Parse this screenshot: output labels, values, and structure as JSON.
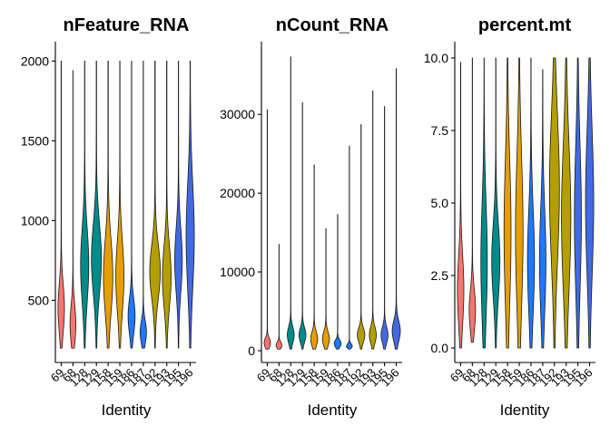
{
  "chart_data": [
    {
      "type": "violin",
      "title": "nFeature_RNA",
      "xlabel": "Identity",
      "ylabel": "",
      "categories": [
        "69",
        "68",
        "128",
        "129",
        "158",
        "159",
        "186",
        "187",
        "192",
        "193",
        "195",
        "196"
      ],
      "colors": [
        "#F8766D",
        "#F8766D",
        "#008B8B",
        "#008B8B",
        "#E69F00",
        "#E69F00",
        "#1F78FF",
        "#1F78FF",
        "#B59F00",
        "#B59F00",
        "#4169E1",
        "#4169E1"
      ],
      "ylim": [
        110,
        2110
      ],
      "yticks": [
        500,
        1000,
        1500,
        2000
      ],
      "series": [
        {
          "category": "69",
          "min": 200,
          "max": 2000,
          "mode": 450,
          "spread": 150,
          "width": 0.55
        },
        {
          "category": "68",
          "min": 200,
          "max": 1940,
          "mode": 350,
          "spread": 120,
          "width": 0.5
        },
        {
          "category": "128",
          "min": 200,
          "max": 2000,
          "mode": 720,
          "spread": 230,
          "width": 0.7
        },
        {
          "category": "129",
          "min": 200,
          "max": 2000,
          "mode": 760,
          "spread": 220,
          "width": 0.85
        },
        {
          "category": "158",
          "min": 200,
          "max": 2000,
          "mode": 650,
          "spread": 230,
          "width": 0.8
        },
        {
          "category": "159",
          "min": 200,
          "max": 2000,
          "mode": 650,
          "spread": 220,
          "width": 0.7
        },
        {
          "category": "186",
          "min": 200,
          "max": 2000,
          "mode": 400,
          "spread": 110,
          "width": 0.6
        },
        {
          "category": "187",
          "min": 200,
          "max": 2000,
          "mode": 300,
          "spread": 70,
          "width": 0.55
        },
        {
          "category": "192",
          "min": 200,
          "max": 2000,
          "mode": 680,
          "spread": 170,
          "width": 0.9
        },
        {
          "category": "193",
          "min": 200,
          "max": 2000,
          "mode": 650,
          "spread": 190,
          "width": 0.75
        },
        {
          "category": "195",
          "min": 200,
          "max": 2000,
          "mode": 750,
          "spread": 200,
          "width": 0.65
        },
        {
          "category": "196",
          "min": 200,
          "max": 2000,
          "mode": 900,
          "spread": 330,
          "width": 0.7
        }
      ]
    },
    {
      "type": "violin",
      "title": "nCount_RNA",
      "xlabel": "Identity",
      "ylabel": "",
      "categories": [
        "69",
        "68",
        "128",
        "129",
        "158",
        "159",
        "186",
        "187",
        "192",
        "193",
        "195",
        "196"
      ],
      "colors": [
        "#F8766D",
        "#F8766D",
        "#008B8B",
        "#008B8B",
        "#E69F00",
        "#E69F00",
        "#1F78FF",
        "#1F78FF",
        "#B59F00",
        "#B59F00",
        "#4169E1",
        "#4169E1"
      ],
      "ylim": [
        -1500,
        39000
      ],
      "yticks": [
        0,
        10000,
        20000,
        30000
      ],
      "series": [
        {
          "category": "69",
          "min": 200,
          "max": 30600,
          "mode": 1000,
          "spread": 600,
          "width": 0.55
        },
        {
          "category": "68",
          "min": 200,
          "max": 13500,
          "mode": 700,
          "spread": 400,
          "width": 0.5
        },
        {
          "category": "128",
          "min": 200,
          "max": 37300,
          "mode": 2000,
          "spread": 1000,
          "width": 0.6
        },
        {
          "category": "129",
          "min": 200,
          "max": 31500,
          "mode": 2000,
          "spread": 900,
          "width": 0.6
        },
        {
          "category": "158",
          "min": 200,
          "max": 23600,
          "mode": 1500,
          "spread": 900,
          "width": 0.6
        },
        {
          "category": "159",
          "min": 200,
          "max": 15500,
          "mode": 1500,
          "spread": 900,
          "width": 0.6
        },
        {
          "category": "186",
          "min": 200,
          "max": 17300,
          "mode": 900,
          "spread": 450,
          "width": 0.6
        },
        {
          "category": "187",
          "min": 200,
          "max": 26000,
          "mode": 600,
          "spread": 250,
          "width": 0.55
        },
        {
          "category": "192",
          "min": 200,
          "max": 28700,
          "mode": 2000,
          "spread": 900,
          "width": 0.65
        },
        {
          "category": "193",
          "min": 200,
          "max": 33000,
          "mode": 2000,
          "spread": 1000,
          "width": 0.6
        },
        {
          "category": "195",
          "min": 200,
          "max": 31000,
          "mode": 2000,
          "spread": 1000,
          "width": 0.6
        },
        {
          "category": "196",
          "min": 200,
          "max": 35800,
          "mode": 2500,
          "spread": 1300,
          "width": 0.7
        }
      ]
    },
    {
      "type": "violin",
      "title": "percent.mt",
      "xlabel": "Identity",
      "ylabel": "",
      "categories": [
        "69",
        "68",
        "128",
        "129",
        "158",
        "159",
        "186",
        "187",
        "192",
        "193",
        "195",
        "196"
      ],
      "colors": [
        "#F8766D",
        "#F8766D",
        "#008B8B",
        "#008B8B",
        "#E69F00",
        "#E69F00",
        "#1F78FF",
        "#1F78FF",
        "#B59F00",
        "#B59F00",
        "#4169E1",
        "#4169E1"
      ],
      "ylim": [
        -0.5,
        10.5
      ],
      "yticks": [
        "0.0",
        "2.5",
        "5.0",
        "7.5",
        "10.0"
      ],
      "series": [
        {
          "category": "69",
          "min": 0.0,
          "max": 9.85,
          "mode": 2.0,
          "spread": 1.2,
          "width": 0.55
        },
        {
          "category": "68",
          "min": 0.2,
          "max": 10.0,
          "mode": 1.3,
          "spread": 0.7,
          "width": 0.55
        },
        {
          "category": "128",
          "min": 0.0,
          "max": 10.0,
          "mode": 3.0,
          "spread": 2.0,
          "width": 0.55
        },
        {
          "category": "129",
          "min": 0.0,
          "max": 10.0,
          "mode": 3.0,
          "spread": 1.3,
          "width": 0.7
        },
        {
          "category": "158",
          "min": 0.0,
          "max": 10.0,
          "mode": 4.0,
          "spread": 2.5,
          "width": 0.6
        },
        {
          "category": "159",
          "min": 0.0,
          "max": 10.0,
          "mode": 4.0,
          "spread": 2.6,
          "width": 0.65
        },
        {
          "category": "186",
          "min": 0.0,
          "max": 10.0,
          "mode": 3.0,
          "spread": 1.8,
          "width": 0.6
        },
        {
          "category": "187",
          "min": 0.0,
          "max": 9.6,
          "mode": 3.0,
          "spread": 1.8,
          "width": 0.55
        },
        {
          "category": "192",
          "min": 0.0,
          "max": 10.0,
          "mode": 5.5,
          "spread": 2.5,
          "width": 0.85
        },
        {
          "category": "193",
          "min": 0.0,
          "max": 10.0,
          "mode": 4.5,
          "spread": 2.5,
          "width": 0.8
        },
        {
          "category": "195",
          "min": 0.0,
          "max": 10.0,
          "mode": 4.5,
          "spread": 2.5,
          "width": 0.6
        },
        {
          "category": "196",
          "min": 0.0,
          "max": 10.0,
          "mode": 5.0,
          "spread": 2.5,
          "width": 0.7
        }
      ]
    }
  ]
}
